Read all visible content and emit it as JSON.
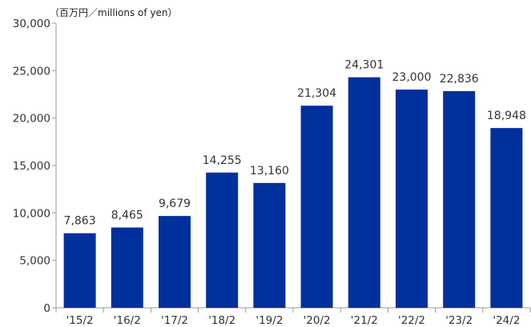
{
  "chart_data": {
    "type": "bar",
    "unit_label": "（百万円／millions of yen）",
    "categories": [
      "'15/2",
      "'16/2",
      "'17/2",
      "'18/2",
      "'19/2",
      "'20/2",
      "'21/2",
      "'22/2",
      "'23/2",
      "'24/2"
    ],
    "values": [
      7863,
      8465,
      9679,
      14255,
      13160,
      21304,
      24301,
      23000,
      22836,
      18948
    ],
    "value_labels": [
      "7,863",
      "8,465",
      "9,679",
      "14,255",
      "13,160",
      "21,304",
      "24,301",
      "23,000",
      "22,836",
      "18,948"
    ],
    "yticks": [
      0,
      5000,
      10000,
      15000,
      20000,
      25000,
      30000
    ],
    "ytick_labels": [
      "0",
      "5,000",
      "10,000",
      "15,000",
      "20,000",
      "25,000",
      "30,000"
    ],
    "ylim": [
      0,
      30000
    ],
    "grid": false,
    "legend": "none",
    "bar_color": "#00309c"
  }
}
